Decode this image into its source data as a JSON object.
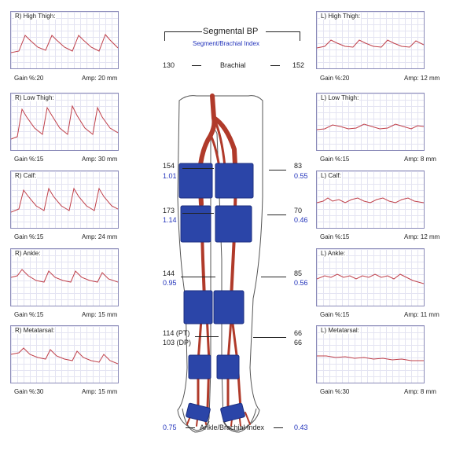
{
  "header": {
    "title": "Segmental BP",
    "subtitle": "Segment/Brachial Index"
  },
  "brachial": {
    "label": "Brachial",
    "right": "130",
    "left": "152"
  },
  "right_panels": [
    {
      "title": "R)  High Thigh:",
      "gain": "Gain %:20",
      "amp": "Amp: 20 mm"
    },
    {
      "title": "R)  Low Thigh:",
      "gain": "Gain %:15",
      "amp": "Amp: 30 mm"
    },
    {
      "title": "R)  Calf:",
      "gain": "Gain %:15",
      "amp": "Amp: 24 mm"
    },
    {
      "title": "R)  Ankle:",
      "gain": "Gain %:15",
      "amp": "Amp: 15 mm"
    },
    {
      "title": "R)  Metatarsal:",
      "gain": "Gain %:30",
      "amp": "Amp: 15 mm"
    }
  ],
  "left_panels": [
    {
      "title": "L)  High Thigh:",
      "gain": "Gain %:20",
      "amp": "Amp: 12 mm"
    },
    {
      "title": "L)  Low Thigh:",
      "gain": "Gain %:15",
      "amp": "Amp: 8 mm"
    },
    {
      "title": "L)  Calf:",
      "gain": "Gain %:15",
      "amp": "Amp: 12 mm"
    },
    {
      "title": "L)  Ankle:",
      "gain": "Gain %:15",
      "amp": "Amp: 11 mm"
    },
    {
      "title": "L)  Metatarsal:",
      "gain": "Gain %:30",
      "amp": "Amp: 8 mm"
    }
  ],
  "segments": {
    "high_thigh": {
      "r_pressure": "154",
      "r_index": "1.01",
      "l_pressure": "83",
      "l_index": "0.55"
    },
    "low_thigh": {
      "r_pressure": "173",
      "r_index": "1.14",
      "l_pressure": "70",
      "l_index": "0.46"
    },
    "calf": {
      "r_pressure": "144",
      "r_index": "0.95",
      "l_pressure": "85",
      "l_index": "0.56"
    },
    "ankle": {
      "r_pt": "114 (PT)",
      "r_dp": "103 (DP)",
      "l_pt": "66",
      "l_dp": "66"
    }
  },
  "abi": {
    "label": "Ankle/Brachial Index",
    "right": "0.75",
    "left": "0.43"
  },
  "colors": {
    "cuff": "#2b45a8",
    "artery": "#b03a2a",
    "waveform": "#c0404a",
    "panel_border": "#8a8ab8",
    "accent_text": "#2233bb"
  }
}
